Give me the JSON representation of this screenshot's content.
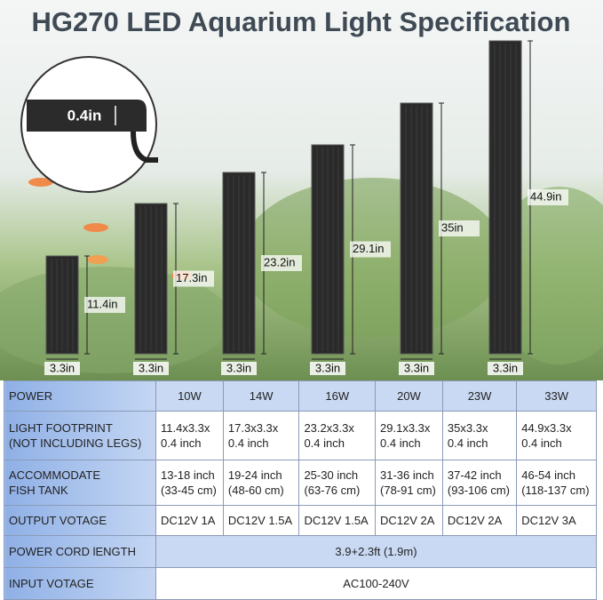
{
  "header": {
    "title": "HG270 LED Aquarium Light Specification"
  },
  "inset": {
    "label": "0.4in"
  },
  "bars": [
    {
      "height": "11.4in",
      "width": "3.3in"
    },
    {
      "height": "17.3in",
      "width": "3.3in"
    },
    {
      "height": "23.2in",
      "width": "3.3in"
    },
    {
      "height": "29.1in",
      "width": "3.3in"
    },
    {
      "height": "35in",
      "width": "3.3in"
    },
    {
      "height": "44.9in",
      "width": "3.3in"
    }
  ],
  "table": {
    "rows": [
      [
        [
          "POWER"
        ],
        [
          "10W"
        ],
        [
          "14W"
        ],
        [
          "16W"
        ],
        [
          "20W"
        ],
        [
          "23W"
        ],
        [
          "33W"
        ]
      ],
      [
        [
          "LIGHT FOOTPRINT",
          "(NOT INCLUDING LEGS)"
        ],
        [
          "11.4x3.3x",
          "0.4 inch"
        ],
        [
          "17.3x3.3x",
          "0.4 inch"
        ],
        [
          "23.2x3.3x",
          "0.4 inch"
        ],
        [
          "29.1x3.3x",
          "0.4 inch"
        ],
        [
          "35x3.3x",
          "0.4 inch"
        ],
        [
          "44.9x3.3x",
          "0.4 inch"
        ]
      ],
      [
        [
          "ACCOMMODATE",
          "FISH TANK"
        ],
        [
          "13-18 inch",
          "(33-45 cm)"
        ],
        [
          "19-24 inch",
          "(48-60 cm)"
        ],
        [
          "25-30 inch",
          "(63-76 cm)"
        ],
        [
          "31-36 inch",
          "(78-91 cm)"
        ],
        [
          "37-42 inch",
          "(93-106 cm)"
        ],
        [
          "46-54 inch",
          "(118-137 cm)"
        ]
      ],
      [
        [
          "OUTPUT VOTAGE"
        ],
        [
          "DC12V 1A"
        ],
        [
          "DC12V 1.5A"
        ],
        [
          "DC12V 1.5A"
        ],
        [
          "DC12V 2A"
        ],
        [
          "DC12V 2A"
        ],
        [
          "DC12V 3A"
        ]
      ],
      [
        [
          "POWER CORD lENGTH"
        ],
        [
          "3.9+2.3ft (1.9m)"
        ]
      ],
      [
        [
          "INPUT VOTAGE"
        ],
        [
          "AC100-240V"
        ]
      ]
    ]
  }
}
